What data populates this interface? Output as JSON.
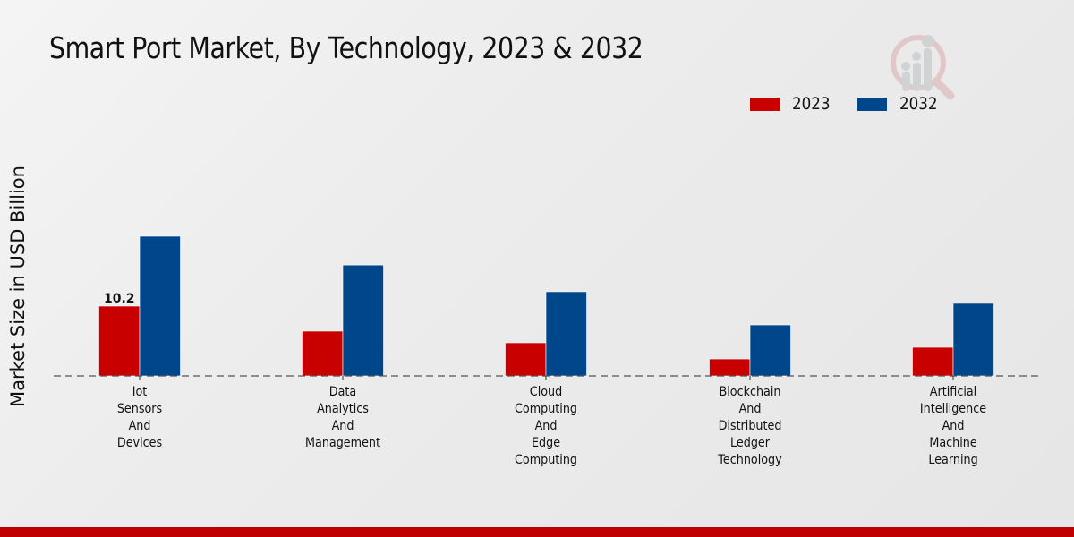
{
  "title": "Smart Port Market, By Technology, 2023 & 2032",
  "colors": {
    "2023": "#c80000",
    "2032": "#00468b",
    "footer": "#c00000"
  },
  "legend": [
    {
      "label": "2023",
      "color": "#c80000"
    },
    {
      "label": "2032",
      "color": "#00468b"
    }
  ],
  "logo_icon": "magnifier-chart-logo-icon",
  "chart_data": {
    "type": "bar",
    "title": "Smart Port Market, By Technology, 2023 & 2032",
    "xlabel": "",
    "ylabel": "Market Size in USD Billion",
    "ylim": [
      0,
      25
    ],
    "grid": false,
    "legend_position": "top-right",
    "categories": [
      [
        "Iot",
        "Sensors",
        "And",
        "Devices"
      ],
      [
        "Data",
        "Analytics",
        "And",
        "Management"
      ],
      [
        "Cloud",
        "Computing",
        "And",
        "Edge",
        "Computing"
      ],
      [
        "Blockchain",
        "And",
        "Distributed",
        "Ledger",
        "Technology"
      ],
      [
        "Artificial",
        "Intelligence",
        "And",
        "Machine",
        "Learning"
      ]
    ],
    "series": [
      {
        "name": "2023",
        "color": "#c80000",
        "values": [
          10.2,
          6.54,
          4.84,
          2.48,
          4.18
        ]
      },
      {
        "name": "2032",
        "color": "#00468b",
        "values": [
          20.4,
          16.2,
          12.3,
          7.45,
          10.6
        ]
      }
    ],
    "data_labels": [
      {
        "series": "2023",
        "category_index": 0,
        "text": "10.2"
      }
    ]
  }
}
